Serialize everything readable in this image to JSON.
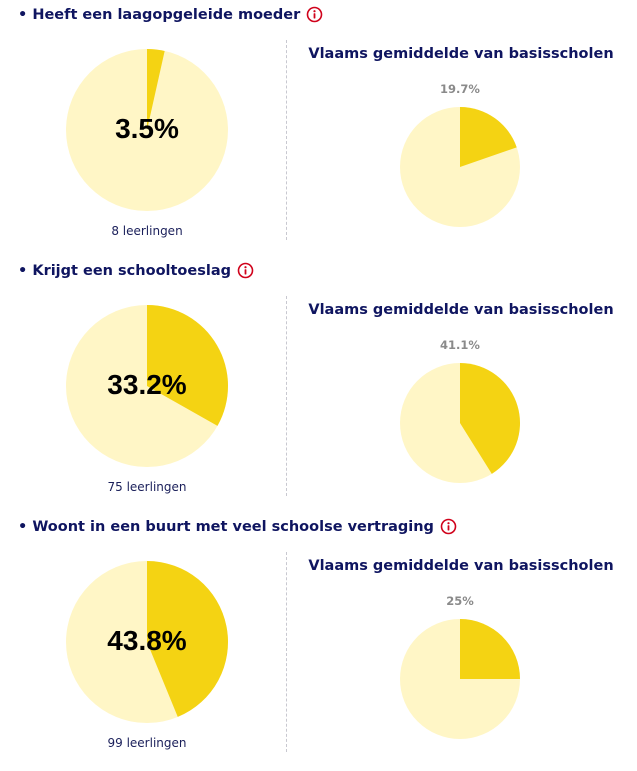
{
  "colors": {
    "slice": "#f4d313",
    "rest": "#fff6c6",
    "info": "#d0021b"
  },
  "chart_data": [
    {
      "type": "pie",
      "title": "Heeft een laagopgeleide moeder",
      "value_pct": 3.5,
      "value_label": "3.5%",
      "count_label": "8 leerlingen",
      "average": {
        "title": "Vlaams gemiddelde van basisscholen",
        "value_pct": 19.7,
        "value_label": "19.7%"
      }
    },
    {
      "type": "pie",
      "title": "Krijgt een schooltoeslag",
      "value_pct": 33.2,
      "value_label": "33.2%",
      "count_label": "75 leerlingen",
      "average": {
        "title": "Vlaams gemiddelde van basisscholen",
        "value_pct": 41.1,
        "value_label": "41.1%"
      }
    },
    {
      "type": "pie",
      "title": "Woont in een buurt met veel schoolse vertraging",
      "value_pct": 43.8,
      "value_label": "43.8%",
      "count_label": "99 leerlingen",
      "average": {
        "title": "Vlaams gemiddelde van basisscholen",
        "value_pct": 25,
        "value_label": "25%"
      }
    }
  ]
}
